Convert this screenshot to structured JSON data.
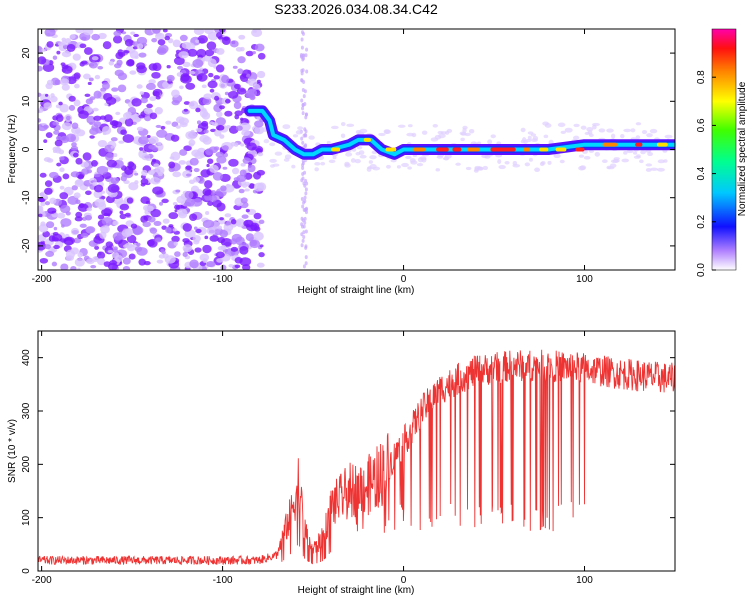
{
  "title": "S233.2026.034.08.34.C42",
  "chart_data": [
    {
      "type": "heatmap",
      "xlabel": "Height of straight line (km)",
      "ylabel": "Frequency (Hz)",
      "xlim": [
        -202,
        150
      ],
      "ylim": [
        -25,
        25
      ],
      "xticks": [
        -200,
        -100,
        0,
        100
      ],
      "yticks": [
        -20,
        -10,
        0,
        10,
        20
      ],
      "colorbar": {
        "label": "Normalized spectral amplitude",
        "range": [
          0,
          1
        ],
        "ticks": [
          0.0,
          0.2,
          0.4,
          0.6,
          0.8
        ]
      },
      "signal_track": [
        {
          "x": -85,
          "y": 8
        },
        {
          "x": -78,
          "y": 8
        },
        {
          "x": -74,
          "y": 6
        },
        {
          "x": -72,
          "y": 3
        },
        {
          "x": -66,
          "y": 2
        },
        {
          "x": -60,
          "y": 0
        },
        {
          "x": -55,
          "y": -1
        },
        {
          "x": -50,
          "y": -1
        },
        {
          "x": -45,
          "y": 0
        },
        {
          "x": -40,
          "y": 0
        },
        {
          "x": -30,
          "y": 1
        },
        {
          "x": -25,
          "y": 2
        },
        {
          "x": -18,
          "y": 2
        },
        {
          "x": -12,
          "y": 0
        },
        {
          "x": -5,
          "y": -1
        },
        {
          "x": 0,
          "y": 0
        },
        {
          "x": 20,
          "y": 0
        },
        {
          "x": 40,
          "y": 0
        },
        {
          "x": 60,
          "y": 0
        },
        {
          "x": 80,
          "y": 0
        },
        {
          "x": 100,
          "y": 1
        },
        {
          "x": 120,
          "y": 1
        },
        {
          "x": 150,
          "y": 1
        }
      ]
    },
    {
      "type": "line",
      "xlabel": "Height of straight line (km)",
      "ylabel": "SNR (10 * v/v)",
      "xlim": [
        -202,
        150
      ],
      "ylim": [
        0,
        450
      ],
      "xticks": [
        -200,
        -100,
        0,
        100
      ],
      "yticks": [
        0,
        100,
        200,
        300,
        400
      ],
      "color": "#ee3333",
      "series": [
        {
          "name": "SNR",
          "envelope": [
            {
              "x": -202,
              "y": 20
            },
            {
              "x": -80,
              "y": 20
            },
            {
              "x": -70,
              "y": 30
            },
            {
              "x": -62,
              "y": 110
            },
            {
              "x": -58,
              "y": 170
            },
            {
              "x": -55,
              "y": 80
            },
            {
              "x": -50,
              "y": 40
            },
            {
              "x": -45,
              "y": 60
            },
            {
              "x": -40,
              "y": 120
            },
            {
              "x": -30,
              "y": 150
            },
            {
              "x": -20,
              "y": 160
            },
            {
              "x": -10,
              "y": 190
            },
            {
              "x": 0,
              "y": 240
            },
            {
              "x": 10,
              "y": 300
            },
            {
              "x": 20,
              "y": 340
            },
            {
              "x": 30,
              "y": 360
            },
            {
              "x": 40,
              "y": 375
            },
            {
              "x": 60,
              "y": 385
            },
            {
              "x": 80,
              "y": 385
            },
            {
              "x": 100,
              "y": 380
            },
            {
              "x": 120,
              "y": 370
            },
            {
              "x": 150,
              "y": 360
            }
          ]
        }
      ]
    }
  ]
}
